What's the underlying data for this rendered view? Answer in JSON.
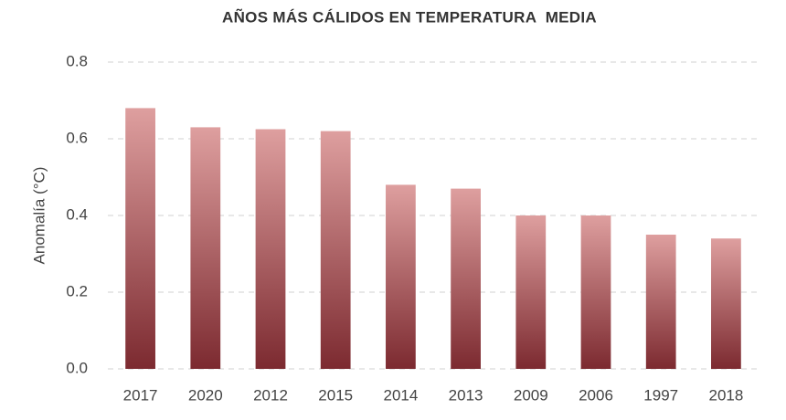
{
  "chart_data": {
    "type": "bar",
    "title": "AÑOS MÁS CÁLIDOS EN TEMPERATURA  MEDIA",
    "y_label": "Anomalía (°C)",
    "categories": [
      "2017",
      "2020",
      "2012",
      "2015",
      "2014",
      "2013",
      "2009",
      "2006",
      "1997",
      "2018"
    ],
    "values": [
      0.68,
      0.63,
      0.625,
      0.62,
      0.48,
      0.47,
      0.4,
      0.4,
      0.35,
      0.34
    ],
    "gradient": [
      "#de9f9f",
      "#7c2a30"
    ],
    "ylim": [
      0,
      0.8
    ],
    "yticks": [
      {
        "value": 0,
        "label": "0.0"
      },
      0.2,
      0.4,
      0.6,
      0.8
    ],
    "grid": true
  }
}
